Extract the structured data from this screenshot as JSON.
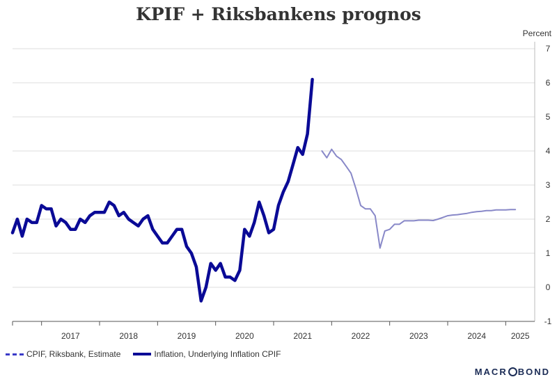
{
  "title": "KPIF + Riksbankens prognos",
  "brand": {
    "pre": "MACR",
    "post": "BOND"
  },
  "colors": {
    "forecast": "#8888c8",
    "actual": "#0a0a96",
    "grid": "#dddddd",
    "axis": "#555555"
  },
  "chart_data": {
    "type": "line",
    "title": "KPIF + Riksbankens prognos",
    "ylabel": "Percent",
    "xlabel": "",
    "ylim": [
      -1,
      7
    ],
    "xlim": [
      "2016-07",
      "2025-07"
    ],
    "y_ticks": [
      -1,
      0,
      1,
      2,
      3,
      4,
      5,
      6,
      7
    ],
    "x_tick_labels": [
      "2017",
      "2018",
      "2019",
      "2020",
      "2021",
      "2022",
      "2023",
      "2024",
      "2025"
    ],
    "grid": true,
    "legend_position": "bottom-left",
    "series": [
      {
        "name": "CPIF, Riksbank, Estimate",
        "style": "thin",
        "points": [
          [
            "2021-11",
            4.0
          ],
          [
            "2021-12",
            3.8
          ],
          [
            "2022-01",
            4.05
          ],
          [
            "2022-02",
            3.85
          ],
          [
            "2022-03",
            3.75
          ],
          [
            "2022-04",
            3.55
          ],
          [
            "2022-05",
            3.35
          ],
          [
            "2022-06",
            2.9
          ],
          [
            "2022-07",
            2.4
          ],
          [
            "2022-08",
            2.3
          ],
          [
            "2022-09",
            2.3
          ],
          [
            "2022-10",
            2.1
          ],
          [
            "2022-11",
            1.15
          ],
          [
            "2022-12",
            1.65
          ],
          [
            "2023-01",
            1.7
          ],
          [
            "2023-02",
            1.85
          ],
          [
            "2023-03",
            1.85
          ],
          [
            "2023-04",
            1.95
          ],
          [
            "2023-05",
            1.95
          ],
          [
            "2023-06",
            1.95
          ],
          [
            "2023-07",
            1.97
          ],
          [
            "2023-08",
            1.97
          ],
          [
            "2023-09",
            1.97
          ],
          [
            "2023-10",
            1.96
          ],
          [
            "2023-11",
            2.0
          ],
          [
            "2023-12",
            2.05
          ],
          [
            "2024-01",
            2.1
          ],
          [
            "2024-02",
            2.12
          ],
          [
            "2024-03",
            2.13
          ],
          [
            "2024-04",
            2.15
          ],
          [
            "2024-05",
            2.17
          ],
          [
            "2024-06",
            2.2
          ],
          [
            "2024-07",
            2.22
          ],
          [
            "2024-08",
            2.23
          ],
          [
            "2024-09",
            2.25
          ],
          [
            "2024-10",
            2.25
          ],
          [
            "2024-11",
            2.27
          ],
          [
            "2024-12",
            2.27
          ],
          [
            "2025-01",
            2.27
          ],
          [
            "2025-02",
            2.28
          ],
          [
            "2025-03",
            2.28
          ]
        ]
      },
      {
        "name": "Inflation, Underlying Inflation CPIF",
        "style": "thick",
        "points": [
          [
            "2016-07",
            1.6
          ],
          [
            "2016-08",
            2.0
          ],
          [
            "2016-09",
            1.5
          ],
          [
            "2016-10",
            2.0
          ],
          [
            "2016-11",
            1.9
          ],
          [
            "2016-12",
            1.9
          ],
          [
            "2017-01",
            2.4
          ],
          [
            "2017-02",
            2.3
          ],
          [
            "2017-03",
            2.3
          ],
          [
            "2017-04",
            1.8
          ],
          [
            "2017-05",
            2.0
          ],
          [
            "2017-06",
            1.9
          ],
          [
            "2017-07",
            1.7
          ],
          [
            "2017-08",
            1.7
          ],
          [
            "2017-09",
            2.0
          ],
          [
            "2017-10",
            1.9
          ],
          [
            "2017-11",
            2.1
          ],
          [
            "2017-12",
            2.2
          ],
          [
            "2018-01",
            2.2
          ],
          [
            "2018-02",
            2.2
          ],
          [
            "2018-03",
            2.5
          ],
          [
            "2018-04",
            2.4
          ],
          [
            "2018-05",
            2.1
          ],
          [
            "2018-06",
            2.2
          ],
          [
            "2018-07",
            2.0
          ],
          [
            "2018-08",
            1.9
          ],
          [
            "2018-09",
            1.8
          ],
          [
            "2018-10",
            2.0
          ],
          [
            "2018-11",
            2.1
          ],
          [
            "2018-12",
            1.7
          ],
          [
            "2019-01",
            1.5
          ],
          [
            "2019-02",
            1.3
          ],
          [
            "2019-03",
            1.3
          ],
          [
            "2019-04",
            1.5
          ],
          [
            "2019-05",
            1.7
          ],
          [
            "2019-06",
            1.7
          ],
          [
            "2019-07",
            1.2
          ],
          [
            "2019-08",
            1.0
          ],
          [
            "2019-09",
            0.6
          ],
          [
            "2019-10",
            -0.4
          ],
          [
            "2019-11",
            0.0
          ],
          [
            "2019-12",
            0.7
          ],
          [
            "2020-01",
            0.5
          ],
          [
            "2020-02",
            0.7
          ],
          [
            "2020-03",
            0.3
          ],
          [
            "2020-04",
            0.3
          ],
          [
            "2020-05",
            0.2
          ],
          [
            "2020-06",
            0.5
          ],
          [
            "2020-07",
            1.7
          ],
          [
            "2020-08",
            1.5
          ],
          [
            "2020-09",
            1.9
          ],
          [
            "2020-10",
            2.5
          ],
          [
            "2020-11",
            2.1
          ],
          [
            "2020-12",
            1.6
          ],
          [
            "2021-01",
            1.7
          ],
          [
            "2021-02",
            2.4
          ],
          [
            "2021-03",
            2.8
          ],
          [
            "2021-04",
            3.1
          ],
          [
            "2021-05",
            3.6
          ],
          [
            "2021-06",
            4.1
          ],
          [
            "2021-07",
            3.9
          ],
          [
            "2021-08",
            4.5
          ],
          [
            "2021-09",
            6.1
          ]
        ]
      }
    ]
  }
}
